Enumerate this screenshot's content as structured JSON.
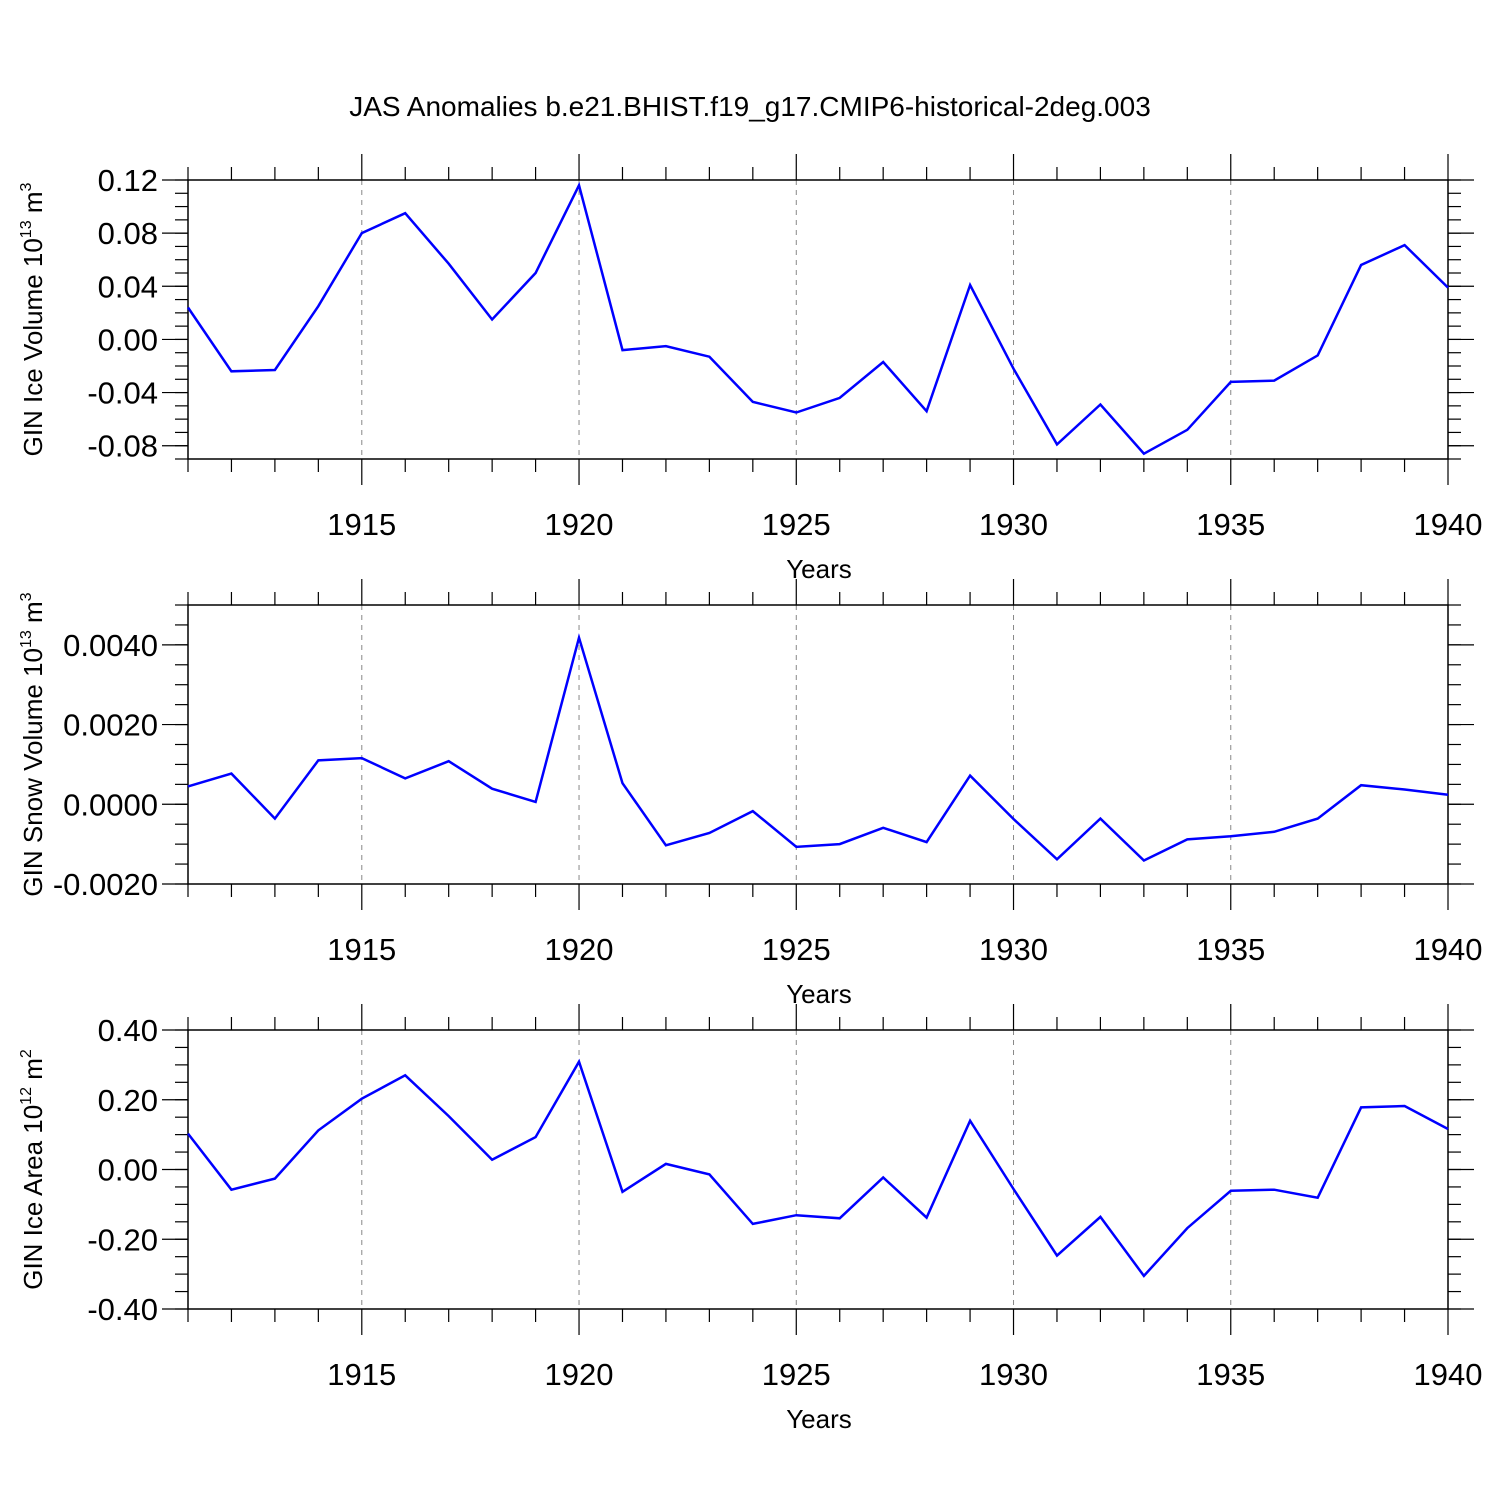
{
  "title": "JAS Anomalies b.e21.BHIST.f19_g17.CMIP6-historical-2deg.003",
  "line_color": "#0000ff",
  "chart_data": [
    {
      "type": "line",
      "ylabel": "GIN Ice Volume 10",
      "ylabel_exp": "13",
      "ylabel_unit": "m",
      "ylabel_unit_exp": "3",
      "xlabel": "Years",
      "xlim": [
        1911,
        1940
      ],
      "ylim": [
        -0.09,
        0.12
      ],
      "xticks": [
        "1915",
        "1920",
        "1925",
        "1930",
        "1935",
        "1940"
      ],
      "yticks": [
        "0.12",
        "0.08",
        "0.04",
        "0.00",
        "-0.04",
        "-0.08"
      ],
      "x": [
        1911,
        1912,
        1913,
        1914,
        1915,
        1916,
        1917,
        1918,
        1919,
        1920,
        1921,
        1922,
        1923,
        1924,
        1925,
        1926,
        1927,
        1928,
        1929,
        1930,
        1931,
        1932,
        1933,
        1934,
        1935,
        1936,
        1937,
        1938,
        1939,
        1940
      ],
      "values": [
        0.024,
        -0.024,
        -0.023,
        0.025,
        0.08,
        0.095,
        0.057,
        0.015,
        0.05,
        0.116,
        -0.008,
        -0.005,
        -0.013,
        -0.047,
        -0.055,
        -0.044,
        -0.017,
        -0.054,
        0.041,
        -0.022,
        -0.079,
        -0.049,
        -0.086,
        -0.068,
        -0.032,
        -0.031,
        -0.012,
        0.056,
        0.071,
        0.039
      ]
    },
    {
      "type": "line",
      "ylabel": "GIN Snow Volume 10",
      "ylabel_exp": "13",
      "ylabel_unit": "m",
      "ylabel_unit_exp": "3",
      "xlabel": "Years",
      "xlim": [
        1911,
        1940
      ],
      "ylim": [
        -0.002,
        0.005
      ],
      "xticks": [
        "1915",
        "1920",
        "1925",
        "1930",
        "1935",
        "1940"
      ],
      "yticks": [
        "0.0040",
        "0.0020",
        "0.0000",
        "-0.0020"
      ],
      "x": [
        1911,
        1912,
        1913,
        1914,
        1915,
        1916,
        1917,
        1918,
        1919,
        1920,
        1921,
        1922,
        1923,
        1924,
        1925,
        1926,
        1927,
        1928,
        1929,
        1930,
        1931,
        1932,
        1933,
        1934,
        1935,
        1936,
        1937,
        1938,
        1939,
        1940
      ],
      "values": [
        0.00045,
        0.00077,
        -0.00036,
        0.0011,
        0.00116,
        0.00065,
        0.00108,
        0.00039,
        6e-05,
        0.00418,
        0.00053,
        -0.00103,
        -0.00072,
        -0.00017,
        -0.00107,
        -0.001,
        -0.00059,
        -0.00095,
        0.00072,
        -0.00037,
        -0.00138,
        -0.00036,
        -0.00141,
        -0.00088,
        -0.0008,
        -0.00069,
        -0.00036,
        0.00048,
        0.00037,
        0.00024
      ]
    },
    {
      "type": "line",
      "ylabel": "GIN Ice Area 10",
      "ylabel_exp": "12",
      "ylabel_unit": "m",
      "ylabel_unit_exp": "2",
      "xlabel": "Years",
      "xlim": [
        1911,
        1940
      ],
      "ylim": [
        -0.4,
        0.4
      ],
      "xticks": [
        "1915",
        "1920",
        "1925",
        "1930",
        "1935",
        "1940"
      ],
      "yticks": [
        "0.40",
        "0.20",
        "0.00",
        "-0.20",
        "-0.40"
      ],
      "x": [
        1911,
        1912,
        1913,
        1914,
        1915,
        1916,
        1917,
        1918,
        1919,
        1920,
        1921,
        1922,
        1923,
        1924,
        1925,
        1926,
        1927,
        1928,
        1929,
        1930,
        1931,
        1932,
        1933,
        1934,
        1935,
        1936,
        1937,
        1938,
        1939,
        1940
      ],
      "values": [
        0.103,
        -0.058,
        -0.026,
        0.112,
        0.203,
        0.27,
        0.153,
        0.028,
        0.093,
        0.309,
        -0.064,
        0.016,
        -0.014,
        -0.156,
        -0.131,
        -0.14,
        -0.023,
        -0.138,
        0.14,
        -0.056,
        -0.247,
        -0.136,
        -0.305,
        -0.168,
        -0.061,
        -0.058,
        -0.081,
        0.178,
        0.182,
        0.116
      ]
    }
  ]
}
